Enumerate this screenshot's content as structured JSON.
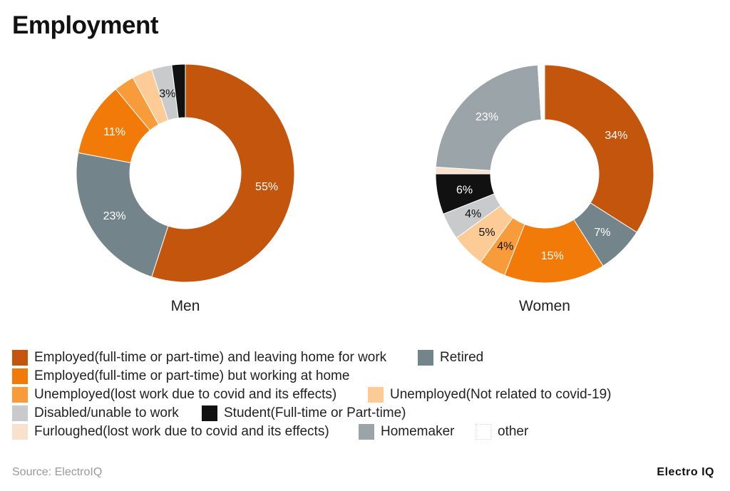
{
  "title": "Employment",
  "chart_data": [
    {
      "type": "pie",
      "variant": "donut",
      "caption": "Men",
      "slices": [
        {
          "category": "Employed(full-time or part-time) and leaving home for work",
          "value": 55,
          "label": "55%"
        },
        {
          "category": "Retired",
          "value": 23,
          "label": "23%"
        },
        {
          "category": "Employed(full-time or part-time) but working at home",
          "value": 11,
          "label": "11%"
        },
        {
          "category": "Unemployed(lost work due to covid and its effects)",
          "value": 3,
          "label": ""
        },
        {
          "category": "Unemployed(Not related to covid-19)",
          "value": 3,
          "label": ""
        },
        {
          "category": "Disabled/unable to work",
          "value": 3,
          "label": "3%"
        },
        {
          "category": "Student(Full-time or Part-time)",
          "value": 2,
          "label": ""
        }
      ]
    },
    {
      "type": "pie",
      "variant": "donut",
      "caption": "Women",
      "slices": [
        {
          "category": "Employed(full-time or part-time) and leaving home for work",
          "value": 34,
          "label": "34%"
        },
        {
          "category": "Retired",
          "value": 7,
          "label": "7%"
        },
        {
          "category": "Employed(full-time or part-time) but working at home",
          "value": 15,
          "label": "15%"
        },
        {
          "category": "Unemployed(lost work due to covid and its effects)",
          "value": 4,
          "label": "4%"
        },
        {
          "category": "Unemployed(Not related to covid-19)",
          "value": 5,
          "label": "5%"
        },
        {
          "category": "Disabled/unable to work",
          "value": 4,
          "label": "4%"
        },
        {
          "category": "Student(Full-time or Part-time)",
          "value": 6,
          "label": "6%"
        },
        {
          "category": "Furloughed(lost work due to covid and its effects)",
          "value": 1,
          "label": ""
        },
        {
          "category": "Homemaker",
          "value": 23,
          "label": "23%"
        },
        {
          "category": "other",
          "value": 1,
          "label": ""
        }
      ]
    }
  ],
  "colors": {
    "Employed(full-time or part-time) and leaving home for work": "#C4550D",
    "Retired": "#73858A",
    "Employed(full-time or part-time) but working at home": "#F27A08",
    "Unemployed(lost work due to covid and its effects)": "#F89B3B",
    "Unemployed(Not related to covid-19)": "#FDCB95",
    "Disabled/unable to work": "#C8CACB",
    "Student(Full-time or Part-time)": "#111111",
    "Furloughed(lost work due to covid and its effects)": "#F9E2CD",
    "Homemaker": "#9AA4A9",
    "other": "#FFFFFF"
  },
  "dark_label_categories": [
    "Unemployed(Not related to covid-19)",
    "Disabled/unable to work",
    "Unemployed(lost work due to covid and its effects)"
  ],
  "legend": {
    "position": "bottom",
    "items": [
      "Employed(full-time or part-time) and leaving home for work",
      "Retired",
      "Employed(full-time or part-time) but working at home",
      "Unemployed(lost work due to covid and its effects)",
      "Unemployed(Not related to covid-19)",
      "Disabled/unable to work",
      "Student(Full-time or Part-time)",
      "Furloughed(lost work due to covid and its effects)",
      "Homemaker",
      "other"
    ]
  },
  "footer": {
    "source": "Source: ElectroIQ",
    "brand": "Electro IQ"
  }
}
